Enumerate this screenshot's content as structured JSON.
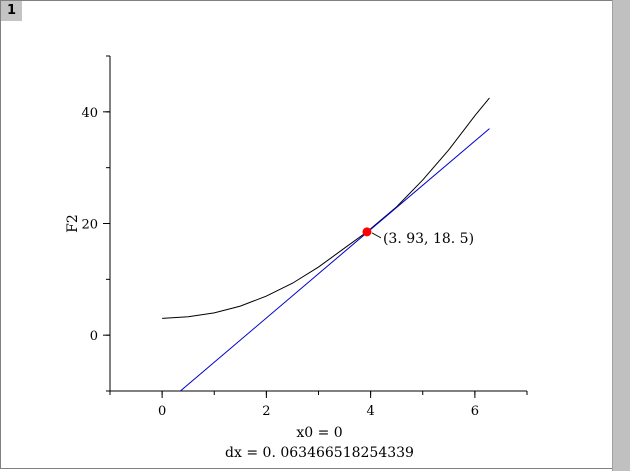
{
  "worksheet": {
    "region_number": "1"
  },
  "chart_data": {
    "type": "line",
    "ylabel": "F2",
    "xlabel": "",
    "xlim": [
      -1,
      7
    ],
    "ylim": [
      -10,
      50
    ],
    "x_ticks": [
      0,
      2,
      4,
      6
    ],
    "y_ticks": [
      0,
      20,
      40
    ],
    "x_tick_labels": [
      "0",
      "2",
      "4",
      "6"
    ],
    "y_tick_labels": [
      "0",
      "20",
      "40"
    ],
    "series": [
      {
        "kind": "curve",
        "color": "#000000",
        "x": [
          0,
          0.5,
          1,
          1.5,
          2,
          2.5,
          3,
          3.5,
          3.93,
          4.5,
          5,
          5.5,
          6,
          6.28
        ],
        "y": [
          3.0,
          3.3,
          4.0,
          5.2,
          7.0,
          9.3,
          12.2,
          15.6,
          18.5,
          23.0,
          27.8,
          33.2,
          39.3,
          42.5
        ]
      },
      {
        "kind": "tangent",
        "color": "#0000cc",
        "x": [
          0.35,
          6.28
        ],
        "y": [
          -10.0,
          37.0
        ]
      }
    ],
    "point": {
      "x": 3.93,
      "y": 18.5,
      "color": "#ff0000"
    },
    "point_label": "(3. 93, 18. 5)",
    "captions": [
      "x0 = 0",
      "dx = 0. 063466518254339"
    ]
  }
}
